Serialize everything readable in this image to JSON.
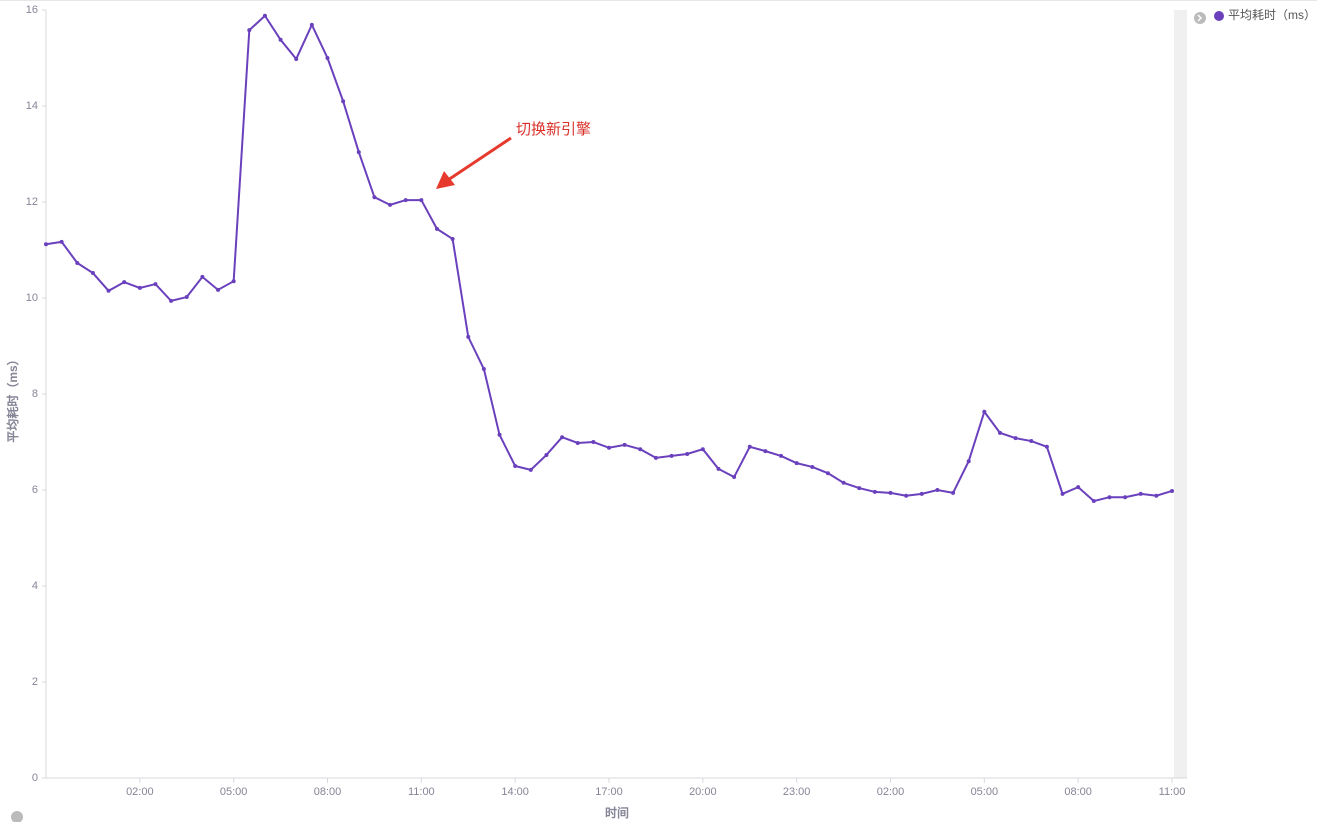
{
  "chart_data": {
    "type": "line",
    "xlabel": "时间",
    "ylabel": "平均耗时（ms）",
    "annotation": "切换新引擎",
    "categories": [
      null,
      null,
      null,
      null,
      null,
      null,
      "02:00",
      null,
      null,
      null,
      null,
      null,
      "05:00",
      null,
      null,
      null,
      null,
      null,
      "08:00",
      null,
      null,
      null,
      null,
      null,
      "11:00",
      null,
      null,
      null,
      null,
      null,
      "14:00",
      null,
      null,
      null,
      null,
      null,
      "17:00",
      null,
      null,
      null,
      null,
      null,
      "20:00",
      null,
      null,
      null,
      null,
      null,
      "23:00",
      null,
      null,
      null,
      null,
      null,
      "02:00",
      null,
      null,
      null,
      null,
      null,
      "05:00",
      null,
      null,
      null,
      null,
      null,
      "08:00",
      null,
      null,
      null,
      null,
      null,
      "11:00"
    ],
    "series": [
      {
        "name": "平均耗时（ms）",
        "color": "#6a40bd",
        "values": [
          11.12,
          11.17,
          10.73,
          10.52,
          10.15,
          10.33,
          10.21,
          10.29,
          9.94,
          10.02,
          10.44,
          10.17,
          10.35,
          15.58,
          15.88,
          15.38,
          14.98,
          15.69,
          15.0,
          14.1,
          13.04,
          12.1,
          11.94,
          12.04,
          12.04,
          11.44,
          11.23,
          9.19,
          8.52,
          7.15,
          6.5,
          6.42,
          6.73,
          7.1,
          6.98,
          7.0,
          6.88,
          6.94,
          6.85,
          6.67,
          6.71,
          6.75,
          6.85,
          6.44,
          6.27,
          6.9,
          6.81,
          6.71,
          6.56,
          6.48,
          6.35,
          6.15,
          6.04,
          5.96,
          5.94,
          5.88,
          5.92,
          6.0,
          5.94,
          6.6,
          7.63,
          7.19,
          7.08,
          7.02,
          6.9,
          5.92,
          6.06,
          5.77,
          5.85,
          5.85,
          5.92,
          5.88,
          5.98
        ]
      }
    ],
    "ylim": [
      0,
      16
    ],
    "yticks": [
      0,
      2,
      4,
      6,
      8,
      10,
      12,
      14,
      16
    ],
    "grid": false,
    "legend": "top-right"
  }
}
